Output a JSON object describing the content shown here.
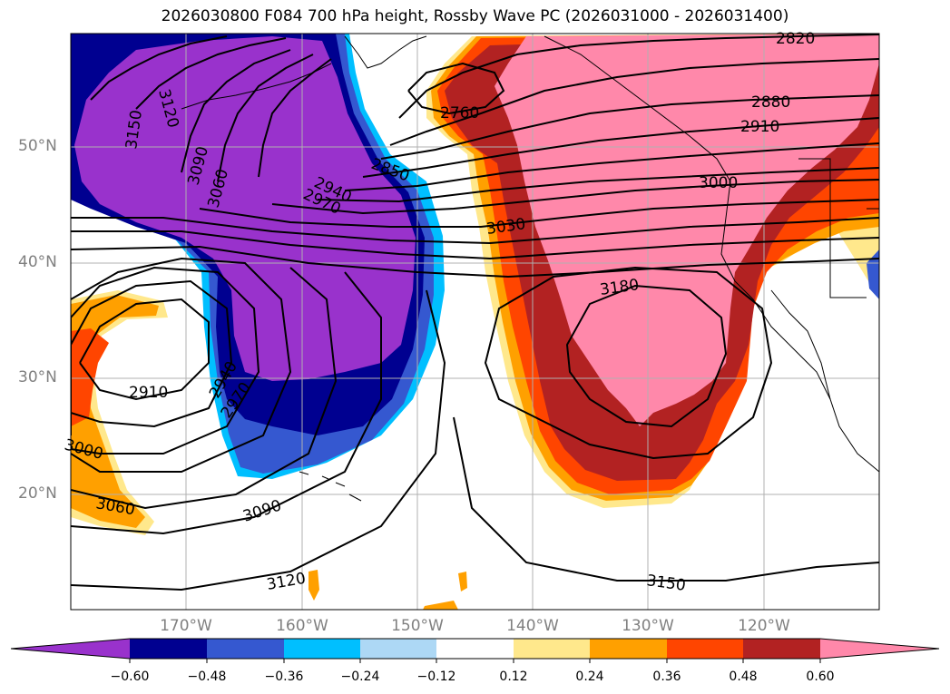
{
  "title": "2026030800 F084 700 hPa height, Rossby Wave PC (2026031000 - 2026031400)",
  "latitude_labels": [
    {
      "text": "50°N",
      "lat": 50
    },
    {
      "text": "40°N",
      "lat": 40
    },
    {
      "text": "30°N",
      "lat": 30
    },
    {
      "text": "20°N",
      "lat": 20
    }
  ],
  "longitude_labels": [
    {
      "text": "170°W",
      "lon": -170
    },
    {
      "text": "160°W",
      "lon": -160
    },
    {
      "text": "150°W",
      "lon": -150
    },
    {
      "text": "140°W",
      "lon": -140
    },
    {
      "text": "130°W",
      "lon": -130
    },
    {
      "text": "120°W",
      "lon": -120
    }
  ],
  "contour_labels": [
    "2820",
    "2880",
    "2910",
    "3000",
    "2760",
    "2850",
    "2940",
    "2970",
    "3030",
    "3060",
    "3090",
    "3120",
    "3150",
    "3180",
    "2910",
    "2940",
    "2970",
    "3000",
    "3060",
    "3090",
    "3120",
    "3150"
  ],
  "colorbar": {
    "ticks": [
      "−0.60",
      "−0.48",
      "−0.36",
      "−0.24",
      "−0.12",
      "0.12",
      "0.24",
      "0.36",
      "0.48",
      "0.60"
    ],
    "colors": [
      "#9932cc",
      "#000090",
      "#3558d0",
      "#00bfff",
      "#add8f5",
      "#ffffff",
      "#ffe88c",
      "#ffa000",
      "#ff4500",
      "#b22222",
      "#ff88aa"
    ]
  },
  "shading_colors": {
    "neg_outer": "#00bfff",
    "neg_mid": "#3558d0",
    "neg_deep": "#000090",
    "neg_core": "#9932cc",
    "pos_outer": "#ffe88c",
    "pos_mid": "#ffa000",
    "pos_deep": "#ff4500",
    "pos_strong": "#b22222",
    "pos_core": "#ff88aa"
  }
}
